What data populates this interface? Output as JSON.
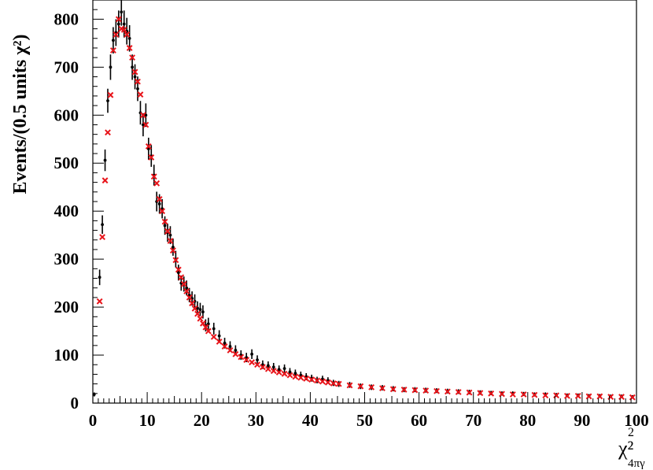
{
  "chart_data": {
    "type": "scatter",
    "ylabel": "Events/(0.5 units χ²)",
    "xlabel": "χ²",
    "xlabel_sub": "4πγ",
    "xlabel_sup": "2",
    "xlim": [
      0,
      100
    ],
    "ylim": [
      0,
      840
    ],
    "xticks": [
      "0",
      "10",
      "20",
      "30",
      "40",
      "50",
      "60",
      "70",
      "80",
      "90",
      "100"
    ],
    "yticks": [
      "0",
      "100",
      "200",
      "300",
      "400",
      "500",
      "600",
      "700",
      "800"
    ],
    "grid": false,
    "legend": "none",
    "colors": {
      "data": "#000000",
      "mc": "#e8141a"
    },
    "series": [
      {
        "marker": "dot-with-errorbars",
        "color": "#000000",
        "x": [
          0.25,
          1.25,
          1.75,
          2.25,
          2.75,
          3.25,
          3.75,
          4.25,
          4.75,
          5.25,
          5.75,
          6.25,
          6.75,
          7.25,
          7.75,
          8.25,
          8.75,
          9.25,
          9.75,
          10.25,
          10.75,
          11.25,
          11.75,
          12.25,
          12.75,
          13.25,
          13.75,
          14.25,
          14.75,
          15.25,
          15.75,
          16.25,
          16.75,
          17.25,
          17.75,
          18.25,
          18.75,
          19.25,
          19.75,
          20.25,
          20.75,
          21.25,
          22.25,
          23.25,
          24.25,
          25.25,
          26.25,
          27.25,
          28.25,
          29.25,
          30.25,
          31.25,
          32.25,
          33.25,
          34.25,
          35.25,
          36.25,
          37.25,
          38.25,
          39.25,
          40.25,
          41.25,
          42.25,
          43.25,
          44.25,
          45.25,
          47.25,
          49.25,
          51.25,
          53.25,
          55.25,
          57.25,
          59.25,
          61.25,
          63.25,
          65.25,
          67.25,
          69.25,
          71.25,
          73.25,
          75.25,
          77.25,
          79.25,
          81.25,
          83.25,
          85.25,
          87.25,
          89.25,
          91.25,
          93.25,
          95.25,
          97.25,
          99.25
        ],
        "y": [
          18,
          262,
          372,
          506,
          630,
          700,
          756,
          772,
          790,
          815,
          790,
          775,
          760,
          700,
          680,
          655,
          605,
          580,
          600,
          530,
          515,
          475,
          420,
          415,
          405,
          370,
          355,
          350,
          325,
          300,
          272,
          250,
          248,
          240,
          225,
          218,
          212,
          198,
          195,
          190,
          162,
          165,
          155,
          140,
          125,
          118,
          110,
          100,
          95,
          102,
          90,
          80,
          78,
          75,
          70,
          72,
          65,
          62,
          58,
          55,
          52,
          48,
          50,
          47,
          42,
          40,
          38,
          35,
          33,
          32,
          30,
          28,
          28,
          27,
          26,
          25,
          24,
          23,
          22,
          21,
          20,
          20,
          19,
          18,
          18,
          17,
          16,
          16,
          15,
          15,
          14,
          14,
          13
        ]
      },
      {
        "marker": "x",
        "color": "#e8141a",
        "x": [
          1.25,
          1.75,
          2.25,
          2.75,
          3.25,
          3.75,
          4.25,
          4.75,
          5.25,
          5.75,
          6.25,
          6.75,
          7.25,
          7.75,
          8.25,
          8.75,
          9.25,
          9.75,
          10.25,
          10.75,
          11.25,
          11.75,
          12.25,
          12.75,
          13.25,
          13.75,
          14.25,
          14.75,
          15.25,
          15.75,
          16.25,
          16.75,
          17.25,
          17.75,
          18.25,
          18.75,
          19.25,
          19.75,
          20.25,
          20.75,
          21.25,
          22.25,
          23.25,
          24.25,
          25.25,
          26.25,
          27.25,
          28.25,
          29.25,
          30.25,
          31.25,
          32.25,
          33.25,
          34.25,
          35.25,
          36.25,
          37.25,
          38.25,
          39.25,
          40.25,
          41.25,
          42.25,
          43.25,
          44.25,
          45.25,
          47.25,
          49.25,
          51.25,
          53.25,
          55.25,
          57.25,
          59.25,
          61.25,
          63.25,
          65.25,
          67.25,
          69.25,
          71.25,
          73.25,
          75.25,
          77.25,
          79.25,
          81.25,
          83.25,
          85.25,
          87.25,
          89.25,
          91.25,
          93.25,
          95.25,
          97.25,
          99.25
        ],
        "y": [
          212,
          346,
          464,
          564,
          642,
          735,
          768,
          800,
          780,
          778,
          768,
          740,
          720,
          690,
          670,
          643,
          600,
          580,
          535,
          512,
          472,
          458,
          425,
          400,
          378,
          358,
          338,
          318,
          298,
          278,
          262,
          248,
          233,
          220,
          208,
          197,
          186,
          176,
          166,
          158,
          150,
          138,
          128,
          118,
          110,
          102,
          96,
          90,
          85,
          80,
          75,
          71,
          67,
          64,
          61,
          58,
          55,
          53,
          51,
          49,
          47,
          45,
          43,
          41,
          40,
          37,
          35,
          33,
          31,
          29,
          28,
          27,
          26,
          25,
          24,
          23,
          22,
          21,
          20,
          19,
          18,
          18,
          17,
          16,
          16,
          15,
          15,
          14,
          14,
          13,
          13,
          12
        ]
      }
    ]
  }
}
